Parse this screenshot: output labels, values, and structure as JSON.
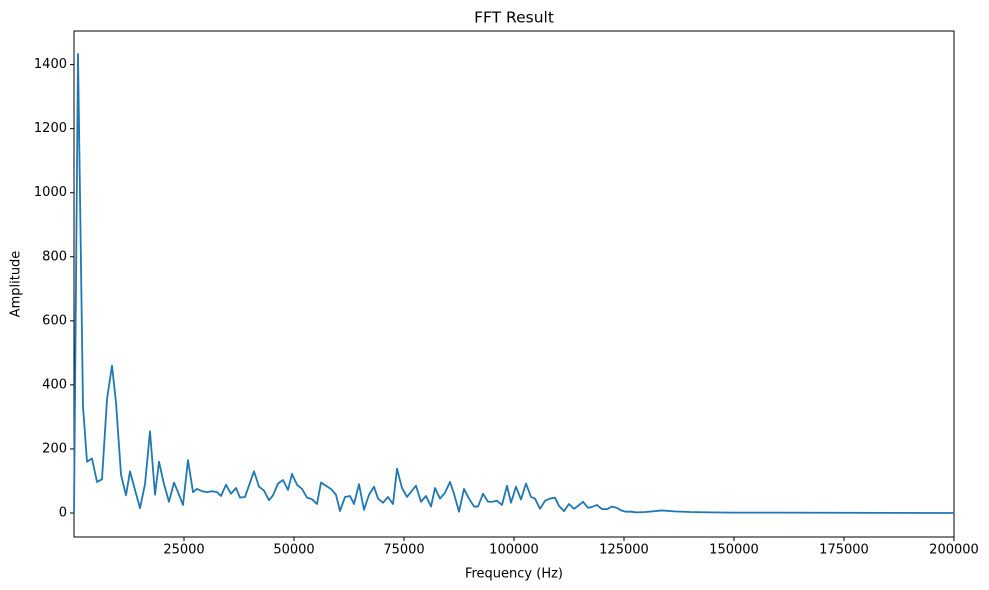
{
  "chart_data": {
    "type": "line",
    "title": "FFT Result",
    "x_label": "Frequency (Hz)",
    "y_label": "Amplitude",
    "color": "#1f77b4",
    "grid": false,
    "x": [
      0,
      909,
      2045,
      2955,
      4090,
      5227,
      6364,
      7500,
      8636,
      9545,
      10682,
      11818,
      12727,
      13864,
      15000,
      16136,
      17273,
      18409,
      19318,
      20455,
      21591,
      22727,
      23636,
      24773,
      25909,
      27045,
      27955,
      29091,
      30227,
      31364,
      32500,
      33409,
      34545,
      35682,
      36818,
      37727,
      38864,
      40000,
      40909,
      42045,
      43182,
      44318,
      45227,
      46364,
      47500,
      48636,
      49545,
      50682,
      51818,
      52955,
      54091,
      55227,
      56136,
      57273,
      58409,
      59545,
      60455,
      61591,
      62727,
      63636,
      64773,
      65909,
      67045,
      68182,
      69091,
      70227,
      71364,
      72500,
      73409,
      74545,
      75682,
      76818,
      77727,
      78864,
      80000,
      81136,
      82045,
      83182,
      84318,
      85455,
      86364,
      87500,
      88636,
      89773,
      90909,
      91818,
      92955,
      94091,
      95000,
      96136,
      97273,
      98409,
      99318,
      100455,
      101591,
      102727,
      103864,
      104773,
      105909,
      107045,
      108182,
      109318,
      110227,
      111364,
      112500,
      113636,
      114545,
      115682,
      116818,
      117955,
      118864,
      120000,
      121136,
      122273,
      123409,
      124318,
      125455,
      126591,
      127727,
      130000,
      133636,
      136364,
      140000,
      145000,
      150000,
      160000,
      200000
    ],
    "values": [
      0,
      1433,
      332,
      160,
      170,
      97,
      105,
      355,
      460,
      345,
      120,
      55,
      130,
      72,
      15,
      90,
      255,
      57,
      160,
      90,
      35,
      95,
      65,
      25,
      165,
      65,
      75,
      68,
      65,
      68,
      65,
      53,
      88,
      60,
      78,
      48,
      50,
      95,
      130,
      82,
      70,
      40,
      55,
      92,
      103,
      72,
      122,
      88,
      75,
      48,
      43,
      28,
      95,
      85,
      75,
      57,
      6,
      50,
      53,
      28,
      90,
      10,
      57,
      82,
      45,
      32,
      50,
      28,
      138,
      78,
      50,
      70,
      85,
      35,
      53,
      20,
      78,
      45,
      63,
      97,
      60,
      4,
      75,
      45,
      20,
      20,
      60,
      35,
      35,
      38,
      25,
      85,
      32,
      82,
      42,
      92,
      50,
      45,
      13,
      38,
      45,
      48,
      22,
      6,
      28,
      13,
      22,
      35,
      16,
      20,
      25,
      12,
      12,
      20,
      16,
      8,
      4,
      4,
      2,
      3,
      8,
      5,
      3,
      2,
      1,
      1,
      0
    ],
    "xlim": [
      0,
      200000
    ],
    "ylim": [
      -75,
      1505
    ],
    "xticks": [
      25000,
      50000,
      75000,
      100000,
      125000,
      150000,
      175000,
      200000
    ],
    "yticks": [
      0,
      200,
      400,
      600,
      800,
      1000,
      1200,
      1400
    ]
  }
}
